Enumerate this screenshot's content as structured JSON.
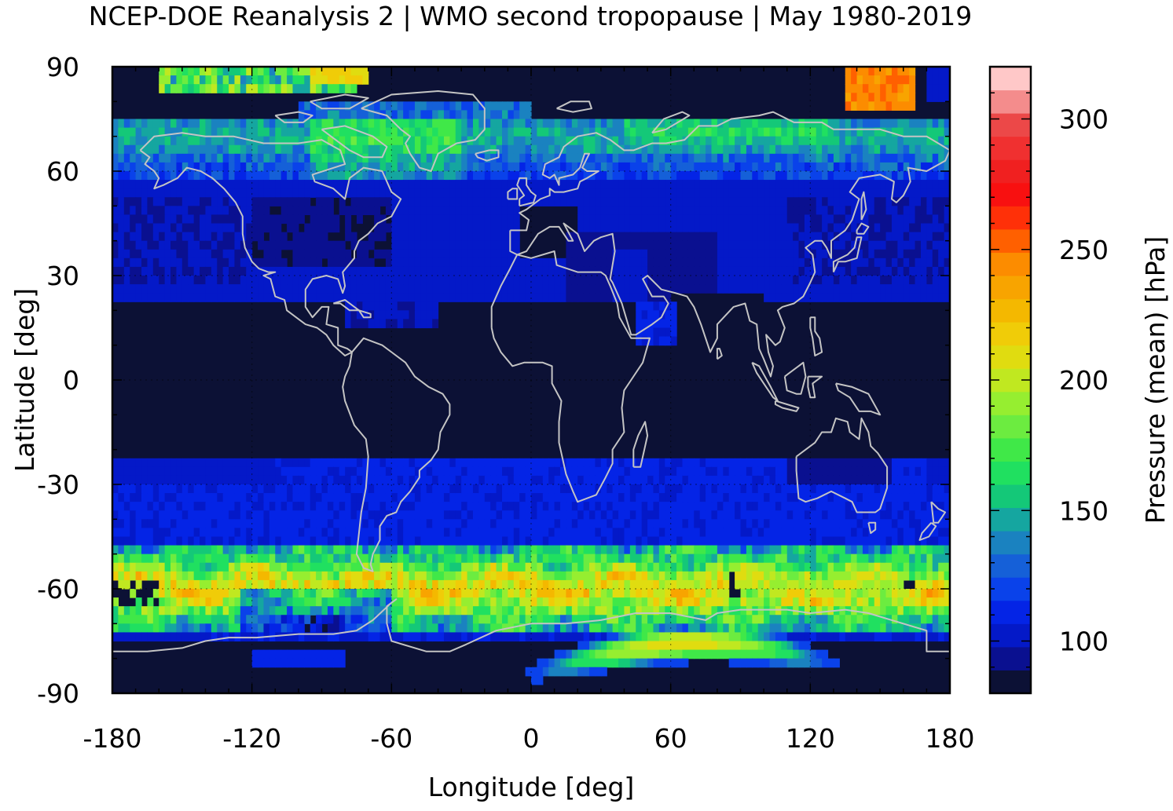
{
  "title": "NCEP-DOE Reanalysis 2 | WMO second tropopause | May 1980-2019",
  "chart_data": {
    "type": "heatmap",
    "title": "NCEP-DOE Reanalysis 2 | WMO second tropopause | May 1980-2019",
    "xlabel": "Longitude [deg]",
    "ylabel": "Latitude [deg]",
    "xlim": [
      -180,
      180
    ],
    "ylim": [
      -90,
      90
    ],
    "x_ticks": [
      "-180",
      "-120",
      "-60",
      "0",
      "60",
      "120",
      "180"
    ],
    "y_ticks": [
      "90",
      "60",
      "30",
      "0",
      "-30",
      "-60",
      "-90"
    ],
    "grid": true,
    "colorbar": {
      "label": "Pressure (mean) [hPa]",
      "range": [
        80,
        320
      ],
      "ticks": [
        "100",
        "150",
        "200",
        "250",
        "300"
      ],
      "colors": [
        "#0c1135",
        "#0a1090",
        "#0419c8",
        "#0424e6",
        "#0a42ea",
        "#1560d8",
        "#1a82c0",
        "#15a6a0",
        "#14c878",
        "#20e060",
        "#40e848",
        "#6cec40",
        "#96ee30",
        "#c0e820",
        "#e0dc10",
        "#f0cc08",
        "#f4b800",
        "#f8a400",
        "#fc8c00",
        "#ff6000",
        "#ff3008",
        "#f81010",
        "#f02020",
        "#f03030",
        "#ec4848",
        "#f48c8c",
        "#ffc8c8"
      ]
    },
    "overlay": "coastlines",
    "regions_hpa": [
      {
        "region": "tropics 25S-25N",
        "value": 80
      },
      {
        "region": "northern subtropics/midlatitudes 25N-60N",
        "value": 100
      },
      {
        "region": "high northern latitudes 60N-75N",
        "value": 130
      },
      {
        "region": "Arctic patches",
        "value": 215
      },
      {
        "region": "southern midlatitudes 25S-50S",
        "value": 105
      },
      {
        "region": "Southern Ocean band 50S-70S",
        "value": 175
      },
      {
        "region": "East Antarctica patch",
        "value": 185
      }
    ]
  }
}
